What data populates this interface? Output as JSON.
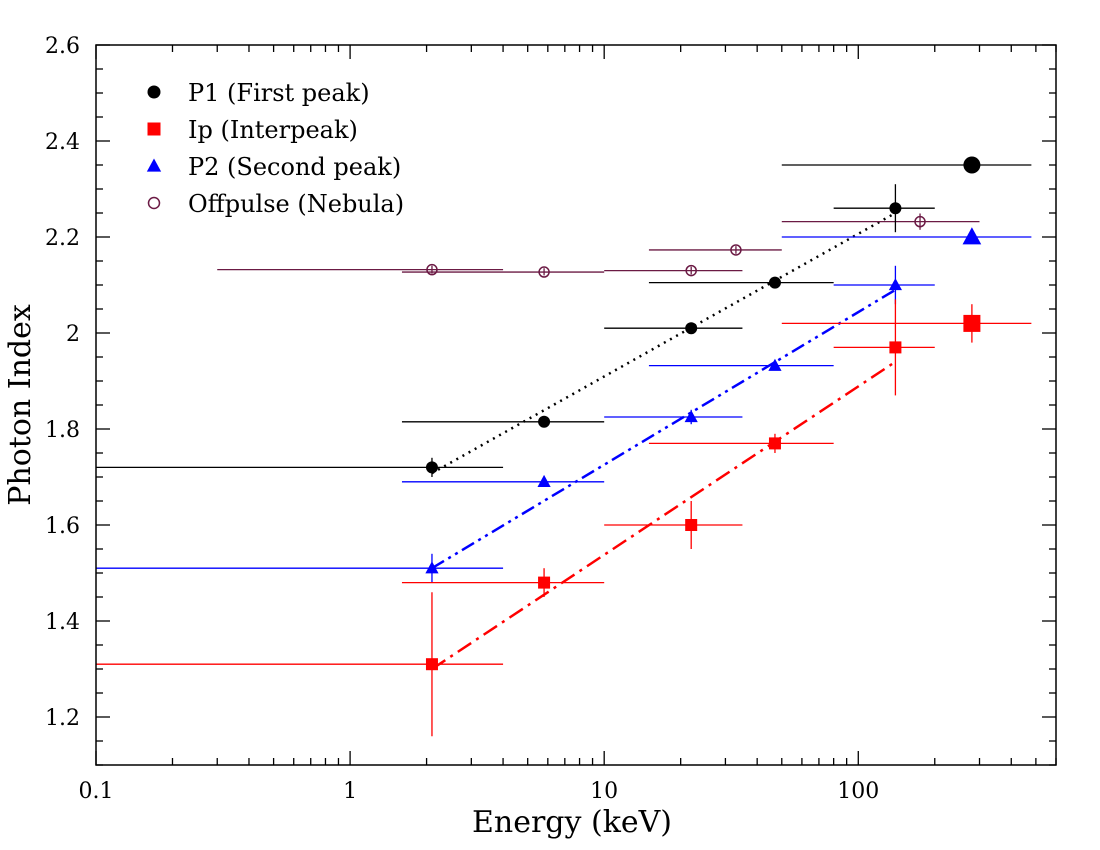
{
  "chart_data": {
    "type": "scatter",
    "title": "",
    "xlabel": "Energy (keV)",
    "ylabel": "Photon Index",
    "xscale": "log",
    "xlim": [
      0.1,
      600
    ],
    "ylim": [
      1.1,
      2.6
    ],
    "x_ticks": [
      0.1,
      1,
      10,
      100
    ],
    "x_tick_labels": [
      "0.1",
      "1",
      "10",
      "100"
    ],
    "y_ticks": [
      1.2,
      1.4,
      1.6,
      1.8,
      2.0,
      2.2,
      2.4,
      2.6
    ],
    "y_tick_labels": [
      "1.2",
      "1.4",
      "1.6",
      "1.8",
      "2",
      "2.2",
      "2.4",
      "2.6"
    ],
    "legend_position": "top-left",
    "series": [
      {
        "name": "P1 (First peak)",
        "color": "#000000",
        "marker": "circle",
        "points": [
          {
            "x": 2.1,
            "y": 1.72,
            "xlo": 0.1,
            "xhi": 4.0,
            "ylo": 1.7,
            "yhi": 1.74
          },
          {
            "x": 5.8,
            "y": 1.815,
            "xlo": 1.6,
            "xhi": 10.0,
            "ylo": 1.805,
            "yhi": 1.825
          },
          {
            "x": 22,
            "y": 2.01,
            "xlo": 10,
            "xhi": 35,
            "ylo": 2.0,
            "yhi": 2.02
          },
          {
            "x": 47,
            "y": 2.105,
            "xlo": 15,
            "xhi": 80,
            "ylo": 2.095,
            "yhi": 2.115
          },
          {
            "x": 140,
            "y": 2.26,
            "xlo": 80,
            "xhi": 200,
            "ylo": 2.21,
            "yhi": 2.31
          },
          {
            "x": 280,
            "y": 2.35,
            "xlo": 50,
            "xhi": 480,
            "ylo": 2.34,
            "yhi": 2.36,
            "large": true
          }
        ],
        "fit_line": {
          "style": "dotted",
          "x": [
            2.1,
            140
          ],
          "y": [
            1.708,
            2.25
          ]
        }
      },
      {
        "name": "Ip (Interpeak)",
        "color": "#ff0000",
        "marker": "square",
        "points": [
          {
            "x": 2.1,
            "y": 1.31,
            "xlo": 0.1,
            "xhi": 4.0,
            "ylo": 1.16,
            "yhi": 1.46
          },
          {
            "x": 5.8,
            "y": 1.48,
            "xlo": 1.6,
            "xhi": 10.0,
            "ylo": 1.45,
            "yhi": 1.51
          },
          {
            "x": 22,
            "y": 1.6,
            "xlo": 10,
            "xhi": 35,
            "ylo": 1.55,
            "yhi": 1.65
          },
          {
            "x": 47,
            "y": 1.77,
            "xlo": 15,
            "xhi": 80,
            "ylo": 1.75,
            "yhi": 1.79
          },
          {
            "x": 140,
            "y": 1.97,
            "xlo": 80,
            "xhi": 200,
            "ylo": 1.87,
            "yhi": 2.07
          },
          {
            "x": 280,
            "y": 2.02,
            "xlo": 50,
            "xhi": 480,
            "ylo": 1.98,
            "yhi": 2.06,
            "large": true
          }
        ],
        "fit_line": {
          "style": "dash-dot",
          "x": [
            2.1,
            140
          ],
          "y": [
            1.3,
            1.94
          ]
        }
      },
      {
        "name": "P2 (Second peak)",
        "color": "#0000ff",
        "marker": "triangle",
        "points": [
          {
            "x": 2.1,
            "y": 1.51,
            "xlo": 0.1,
            "xhi": 4.0,
            "ylo": 1.48,
            "yhi": 1.54
          },
          {
            "x": 5.8,
            "y": 1.69,
            "xlo": 1.6,
            "xhi": 10.0,
            "ylo": 1.68,
            "yhi": 1.7
          },
          {
            "x": 22,
            "y": 1.825,
            "xlo": 10,
            "xhi": 35,
            "ylo": 1.81,
            "yhi": 1.84
          },
          {
            "x": 47,
            "y": 1.932,
            "xlo": 15,
            "xhi": 80,
            "ylo": 1.925,
            "yhi": 1.94
          },
          {
            "x": 140,
            "y": 2.1,
            "xlo": 80,
            "xhi": 200,
            "ylo": 2.06,
            "yhi": 2.14
          },
          {
            "x": 280,
            "y": 2.2,
            "xlo": 50,
            "xhi": 480,
            "ylo": 2.19,
            "yhi": 2.21,
            "large": true
          }
        ],
        "fit_line": {
          "style": "dash-dot-dot",
          "x": [
            2.1,
            140
          ],
          "y": [
            1.51,
            2.09
          ]
        }
      },
      {
        "name": "Offpulse (Nebula)",
        "color": "#6b1a44",
        "marker": "open-circle",
        "points": [
          {
            "x": 2.1,
            "y": 2.132,
            "xlo": 0.3,
            "xhi": 4.0,
            "ylo": 2.124,
            "yhi": 2.14
          },
          {
            "x": 5.8,
            "y": 2.127,
            "xlo": 1.6,
            "xhi": 10.0,
            "ylo": 2.12,
            "yhi": 2.135
          },
          {
            "x": 22,
            "y": 2.13,
            "xlo": 10,
            "xhi": 35,
            "ylo": 2.122,
            "yhi": 2.138
          },
          {
            "x": 33,
            "y": 2.173,
            "xlo": 15,
            "xhi": 50,
            "ylo": 2.165,
            "yhi": 2.181
          },
          {
            "x": 175,
            "y": 2.232,
            "xlo": 50,
            "xhi": 300,
            "ylo": 2.215,
            "yhi": 2.249
          }
        ]
      }
    ]
  }
}
